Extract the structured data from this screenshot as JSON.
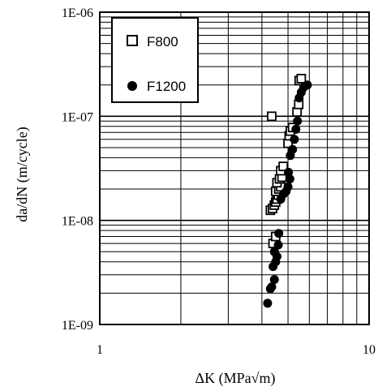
{
  "chart_data": {
    "type": "scatter",
    "xlabel": "ΔK (MPa√m)",
    "ylabel": "da/dN (m/cycle)",
    "x_scale": "log",
    "y_scale": "log",
    "xlim": [
      1,
      10
    ],
    "ylim": [
      1e-09,
      1e-06
    ],
    "x_tick_labels": [
      "1",
      "10"
    ],
    "y_tick_labels": [
      "1E-09",
      "1E-08",
      "1E-07",
      "1E-06"
    ],
    "grid": true,
    "legend_position": "top-left",
    "series": [
      {
        "name": "F800",
        "marker": "open-square",
        "color": "#000000",
        "points": [
          [
            4.35,
            1e-07
          ],
          [
            4.3,
            1.25e-08
          ],
          [
            4.38,
            1.3e-08
          ],
          [
            4.45,
            1.4e-08
          ],
          [
            4.5,
            1.5e-08
          ],
          [
            4.55,
            1.6e-08
          ],
          [
            4.6,
            1.75e-08
          ],
          [
            4.5,
            1.9e-08
          ],
          [
            4.62,
            2e-08
          ],
          [
            4.7,
            2.1e-08
          ],
          [
            4.55,
            2.3e-08
          ],
          [
            4.65,
            2.5e-08
          ],
          [
            4.75,
            2.6e-08
          ],
          [
            4.7,
            3e-08
          ],
          [
            4.8,
            3.3e-08
          ],
          [
            4.4,
            6e-09
          ],
          [
            4.5,
            7e-09
          ],
          [
            5.0,
            5.5e-08
          ],
          [
            5.05,
            6.5e-08
          ],
          [
            5.1,
            7.2e-08
          ],
          [
            5.2,
            7.8e-08
          ],
          [
            5.4,
            1.1e-07
          ],
          [
            5.48,
            1.3e-07
          ],
          [
            5.5,
            2.2e-07
          ],
          [
            5.6,
            2.3e-07
          ]
        ]
      },
      {
        "name": "F1200",
        "marker": "filled-circle",
        "color": "#000000",
        "points": [
          [
            4.2,
            1.6e-09
          ],
          [
            4.3,
            2.2e-09
          ],
          [
            4.35,
            2.3e-09
          ],
          [
            4.45,
            2.7e-09
          ],
          [
            4.4,
            3.6e-09
          ],
          [
            4.5,
            4e-09
          ],
          [
            4.55,
            4.5e-09
          ],
          [
            4.45,
            5e-09
          ],
          [
            4.6,
            5.8e-09
          ],
          [
            4.62,
            7.5e-09
          ],
          [
            4.7,
            1.6e-08
          ],
          [
            4.82,
            1.8e-08
          ],
          [
            4.92,
            1.9e-08
          ],
          [
            5.0,
            2.1e-08
          ],
          [
            5.08,
            2.5e-08
          ],
          [
            5.02,
            2.9e-08
          ],
          [
            5.1,
            4.2e-08
          ],
          [
            5.2,
            4.8e-08
          ],
          [
            5.28,
            6e-08
          ],
          [
            5.35,
            7.5e-08
          ],
          [
            5.42,
            9e-08
          ],
          [
            5.5,
            1.5e-07
          ],
          [
            5.6,
            1.7e-07
          ],
          [
            5.72,
            1.9e-07
          ],
          [
            5.9,
            2e-07
          ]
        ]
      }
    ]
  }
}
